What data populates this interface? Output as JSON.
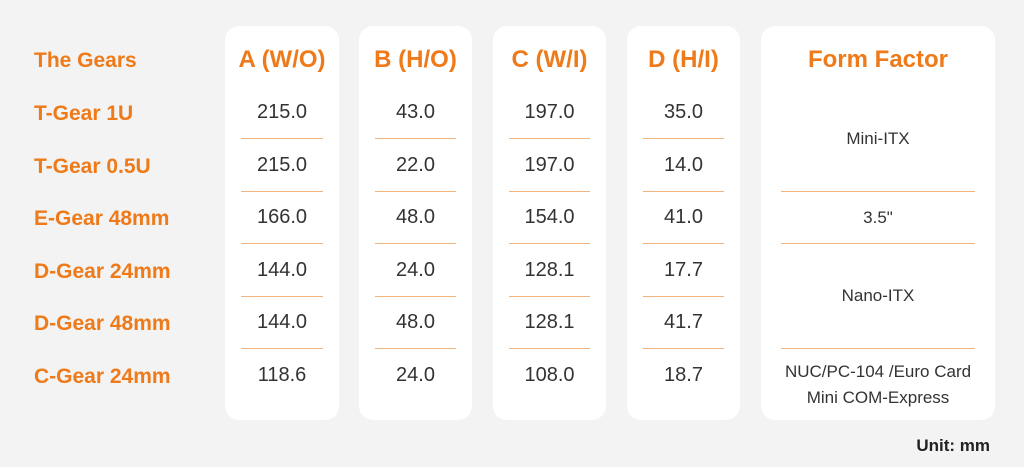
{
  "table": {
    "corner_label": "The Gears",
    "rows": [
      {
        "name": "T-Gear 1U",
        "a": "215.0",
        "b": "43.0",
        "c": "197.0",
        "d": "35.0"
      },
      {
        "name": "T-Gear 0.5U",
        "a": "215.0",
        "b": "22.0",
        "c": "197.0",
        "d": "14.0"
      },
      {
        "name": "E-Gear 48mm",
        "a": "166.0",
        "b": "48.0",
        "c": "154.0",
        "d": "41.0"
      },
      {
        "name": "D-Gear 24mm",
        "a": "144.0",
        "b": "24.0",
        "c": "128.1",
        "d": "17.7"
      },
      {
        "name": "D-Gear 48mm",
        "a": "144.0",
        "b": "48.0",
        "c": "128.1",
        "d": "41.7"
      },
      {
        "name": "C-Gear 24mm",
        "a": "118.6",
        "b": "24.0",
        "c": "108.0",
        "d": "18.7"
      }
    ],
    "columns": {
      "a": "A (W/O)",
      "b": "B (H/O)",
      "c": "C (W/I)",
      "d": "D (H/I)",
      "form_factor": "Form Factor"
    },
    "form_factors": {
      "group1": "Mini-ITX",
      "group2": "3.5\"",
      "group3": "Nano-ITX",
      "group4_line1": "NUC/PC-104 /Euro Card",
      "group4_line2": "Mini COM-Express"
    }
  },
  "unit_label": "Unit: mm",
  "colors": {
    "accent": "#ee7a1a",
    "card": "#ffffff",
    "background": "#f3f3f3"
  }
}
